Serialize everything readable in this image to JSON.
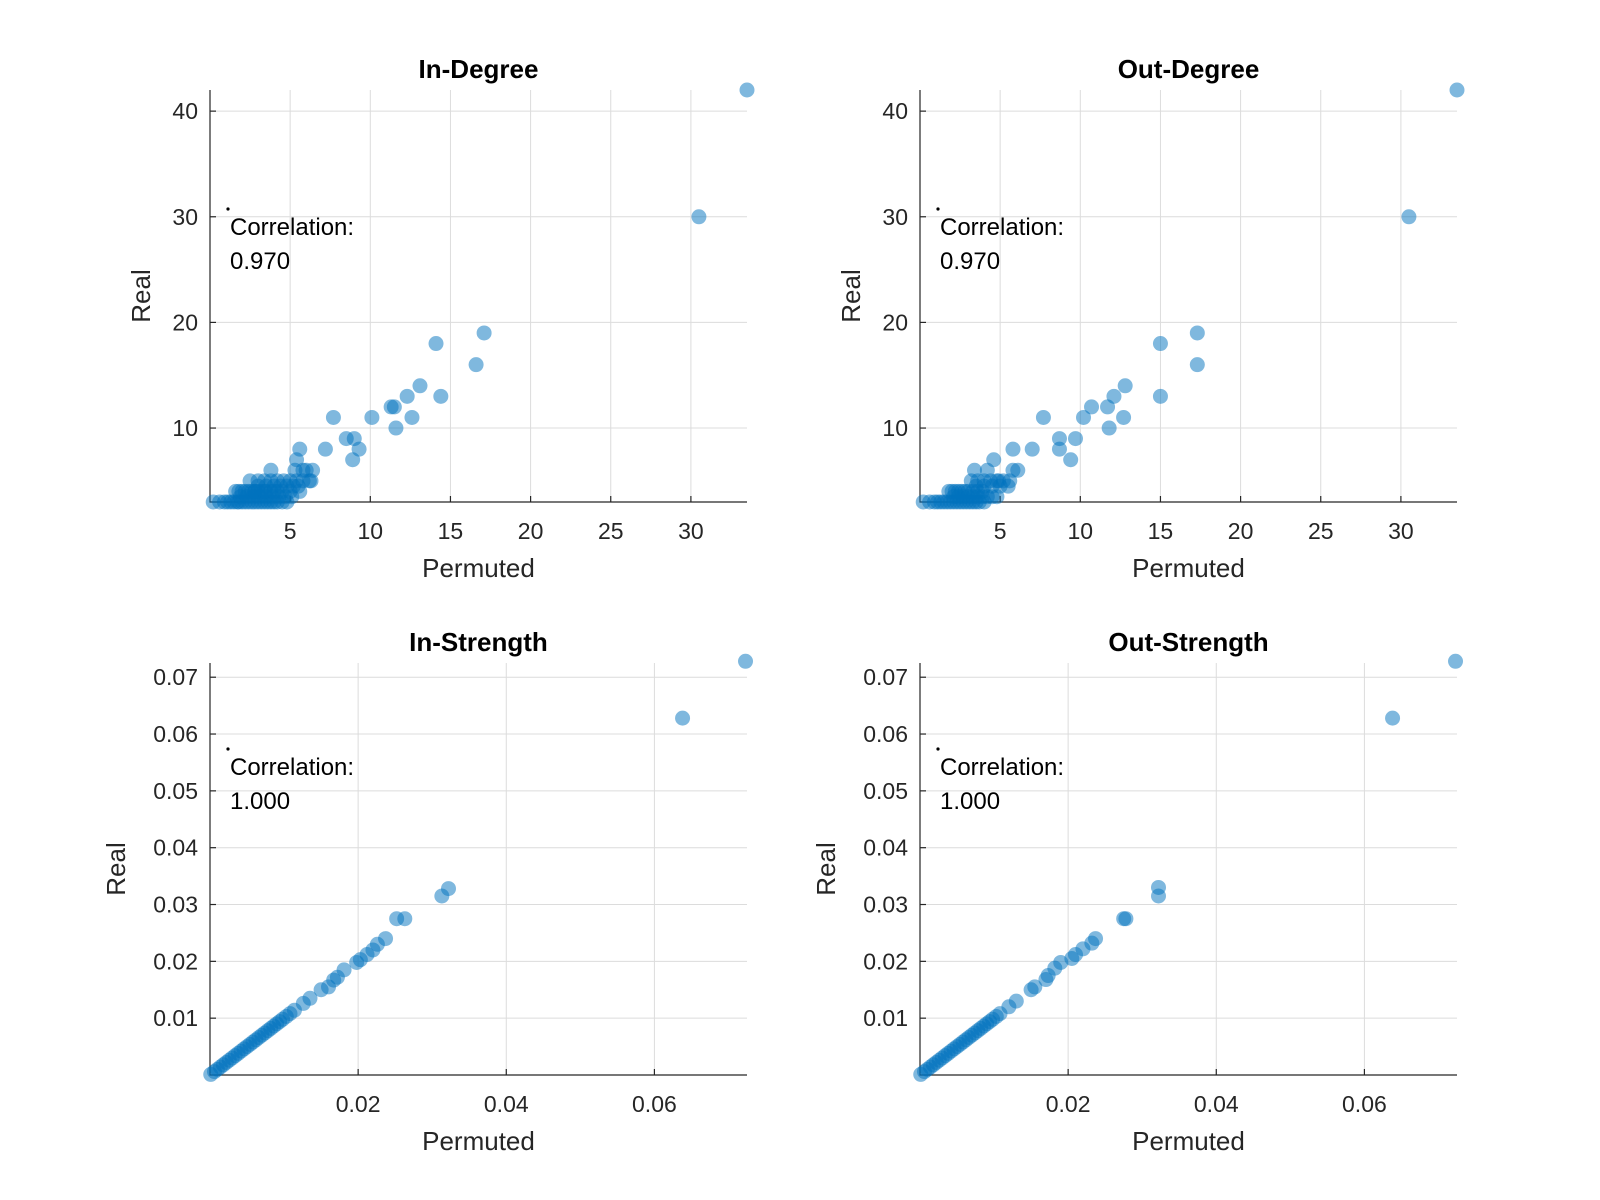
{
  "chart_data": [
    {
      "type": "scatter",
      "title": "In-Degree",
      "xlabel": "Permuted",
      "ylabel": "Real",
      "xlim": [
        0,
        33.5
      ],
      "ylim": [
        3,
        42
      ],
      "xticks": [
        5,
        10,
        15,
        20,
        25,
        30
      ],
      "yticks": [
        10,
        20,
        30,
        40
      ],
      "tick_decimals": 0,
      "grid": true,
      "annotation": [
        "Correlation:",
        "0.970"
      ],
      "x": [
        0.2,
        0.6,
        0.9,
        1.1,
        1.3,
        1.5,
        1.7,
        1.8,
        2.0,
        2.2,
        2.4,
        2.6,
        2.8,
        3.0,
        3.2,
        3.4,
        3.6,
        3.8,
        4.0,
        4.2,
        4.5,
        4.8,
        1.6,
        1.8,
        2.0,
        2.2,
        2.4,
        2.6,
        2.8,
        3.0,
        3.2,
        3.5,
        3.8,
        4.2,
        1.9,
        2.3,
        2.7,
        3.1,
        3.5,
        3.9,
        4.3,
        4.7,
        5.1,
        2.5,
        3.0,
        3.4,
        3.8,
        4.2,
        4.6,
        5.0,
        5.4,
        5.8,
        6.2,
        3.0,
        3.5,
        4.0,
        4.4,
        4.8,
        5.2,
        5.5,
        2.8,
        3.4,
        4.0,
        4.5,
        5.0,
        5.6,
        6.3,
        3.8,
        5.3,
        5.8,
        6.0,
        6.4,
        5.4,
        5.6,
        7.2,
        8.5,
        9.3,
        7.7,
        8.9,
        9.0,
        10.1,
        11.3,
        11.5,
        11.6,
        12.3,
        12.6,
        13.1,
        14.1,
        14.4,
        16.6,
        17.1,
        30.5,
        33.5
      ],
      "y": [
        3,
        3,
        3,
        3,
        3,
        3,
        3,
        3,
        3,
        3,
        3,
        3,
        3,
        3,
        3,
        3,
        3,
        3,
        3,
        3,
        3,
        3,
        4,
        4,
        4,
        4,
        4,
        4,
        4,
        4,
        4,
        4,
        4,
        4,
        3.5,
        3.5,
        3.5,
        3.5,
        3.5,
        3.5,
        3.5,
        3.5,
        3.5,
        5,
        5,
        5,
        5,
        5,
        5,
        5,
        5,
        5,
        5,
        4.5,
        4.5,
        4.5,
        4.5,
        4.5,
        4.5,
        4.5,
        4,
        4,
        4,
        4,
        4,
        4,
        5,
        6,
        6,
        6,
        6,
        6,
        7,
        8,
        8,
        9,
        8,
        11,
        7,
        9,
        11,
        12,
        12,
        10,
        13,
        11,
        14,
        18,
        13,
        16,
        19,
        30,
        42
      ]
    },
    {
      "type": "scatter",
      "title": "Out-Degree",
      "xlabel": "Permuted",
      "ylabel": "Real",
      "xlim": [
        0,
        33.5
      ],
      "ylim": [
        3,
        42
      ],
      "xticks": [
        5,
        10,
        15,
        20,
        25,
        30
      ],
      "yticks": [
        10,
        20,
        30,
        40
      ],
      "tick_decimals": 0,
      "grid": true,
      "annotation": [
        "Correlation:",
        "0.970"
      ],
      "x": [
        0.2,
        0.6,
        0.9,
        1.1,
        1.3,
        1.5,
        1.7,
        1.9,
        2.1,
        2.3,
        2.5,
        2.7,
        2.9,
        3.1,
        3.3,
        3.5,
        3.7,
        4.0,
        1.8,
        2.0,
        2.2,
        2.4,
        2.6,
        2.8,
        3.0,
        3.3,
        3.6,
        3.9,
        2.1,
        2.4,
        2.7,
        3.0,
        3.3,
        3.6,
        3.9,
        4.2,
        4.5,
        4.8,
        3.2,
        3.6,
        4.0,
        4.4,
        4.8,
        5.2,
        3.5,
        4.0,
        4.5,
        5.0,
        5.5,
        3.4,
        4.2,
        4.6,
        4.9,
        5.6,
        5.8,
        6.1,
        5.8,
        7.0,
        7.7,
        8.7,
        8.7,
        9.4,
        9.7,
        10.2,
        10.7,
        11.7,
        11.8,
        12.1,
        12.7,
        12.8,
        15.0,
        15.0,
        17.3,
        17.3,
        30.5,
        33.5
      ],
      "y": [
        3,
        3,
        3,
        3,
        3,
        3,
        3,
        3,
        3,
        3,
        3,
        3,
        3,
        3,
        3,
        3,
        3,
        3,
        4,
        4,
        4,
        4,
        4,
        4,
        4,
        4,
        4,
        4,
        3.5,
        3.5,
        3.5,
        3.5,
        3.5,
        3.5,
        3.5,
        3.5,
        3.5,
        3.5,
        5,
        5,
        5,
        5,
        5,
        5,
        4.5,
        4.5,
        4.5,
        4.5,
        4.5,
        6,
        6,
        7,
        5,
        5,
        6,
        6,
        8,
        8,
        11,
        8,
        9,
        7,
        9,
        11,
        12,
        12,
        10,
        13,
        11,
        14,
        18,
        13,
        19,
        16,
        30,
        42
      ]
    },
    {
      "type": "scatter",
      "title": "In-Strength",
      "xlabel": "Permuted",
      "ylabel": "Real",
      "xlim": [
        0,
        0.0725
      ],
      "ylim": [
        0,
        0.0725
      ],
      "xticks": [
        0.02,
        0.04,
        0.06
      ],
      "yticks": [
        0.01,
        0.02,
        0.03,
        0.04,
        0.05,
        0.06,
        0.07
      ],
      "tick_decimals": 2,
      "grid": true,
      "annotation": [
        "Correlation:",
        "1.000"
      ],
      "x": [
        0.0001,
        0.0006,
        0.001,
        0.0014,
        0.0018,
        0.0022,
        0.0026,
        0.003,
        0.0034,
        0.0038,
        0.0042,
        0.0046,
        0.005,
        0.0054,
        0.0058,
        0.0062,
        0.0066,
        0.007,
        0.0074,
        0.0078,
        0.0082,
        0.0086,
        0.009,
        0.0094,
        0.0098,
        0.0103,
        0.0108,
        0.0114,
        0.0126,
        0.0135,
        0.015,
        0.016,
        0.0167,
        0.0172,
        0.0181,
        0.0198,
        0.0203,
        0.0212,
        0.022,
        0.0226,
        0.0237,
        0.0252,
        0.0263,
        0.0313,
        0.0322,
        0.0638,
        0.0723
      ],
      "y": [
        0.0001,
        0.0006,
        0.001,
        0.0014,
        0.0018,
        0.0022,
        0.0026,
        0.003,
        0.0034,
        0.0038,
        0.0042,
        0.0046,
        0.005,
        0.0054,
        0.0058,
        0.0062,
        0.0066,
        0.007,
        0.0074,
        0.0078,
        0.0082,
        0.0086,
        0.009,
        0.0094,
        0.0098,
        0.0103,
        0.0108,
        0.0114,
        0.0126,
        0.0135,
        0.015,
        0.0155,
        0.0167,
        0.0172,
        0.0185,
        0.0198,
        0.0203,
        0.0212,
        0.022,
        0.023,
        0.024,
        0.0275,
        0.0275,
        0.0315,
        0.0328,
        0.0628,
        0.0728
      ]
    },
    {
      "type": "scatter",
      "title": "Out-Strength",
      "xlabel": "Permuted",
      "ylabel": "Real",
      "xlim": [
        0,
        0.0725
      ],
      "ylim": [
        0,
        0.0725
      ],
      "xticks": [
        0.02,
        0.04,
        0.06
      ],
      "yticks": [
        0.01,
        0.02,
        0.03,
        0.04,
        0.05,
        0.06,
        0.07
      ],
      "tick_decimals": 2,
      "grid": true,
      "annotation": [
        "Correlation:",
        "1.000"
      ],
      "x": [
        0.0001,
        0.0006,
        0.001,
        0.0014,
        0.0018,
        0.0022,
        0.0026,
        0.003,
        0.0034,
        0.0038,
        0.0042,
        0.0046,
        0.005,
        0.0054,
        0.0058,
        0.0062,
        0.0066,
        0.007,
        0.0074,
        0.0078,
        0.0082,
        0.0086,
        0.009,
        0.0094,
        0.0098,
        0.0103,
        0.0108,
        0.012,
        0.013,
        0.015,
        0.0155,
        0.017,
        0.0173,
        0.0182,
        0.019,
        0.0205,
        0.021,
        0.022,
        0.0232,
        0.0237,
        0.0275,
        0.0278,
        0.0322,
        0.0322,
        0.0638,
        0.0723
      ],
      "y": [
        0.0001,
        0.0006,
        0.001,
        0.0014,
        0.0018,
        0.0022,
        0.0026,
        0.003,
        0.0034,
        0.0038,
        0.0042,
        0.0046,
        0.005,
        0.0054,
        0.0058,
        0.0062,
        0.0066,
        0.007,
        0.0074,
        0.0078,
        0.0082,
        0.0086,
        0.009,
        0.0094,
        0.0098,
        0.0103,
        0.0108,
        0.012,
        0.013,
        0.015,
        0.0155,
        0.0168,
        0.0175,
        0.0188,
        0.0198,
        0.0205,
        0.0212,
        0.0222,
        0.0232,
        0.024,
        0.0275,
        0.0275,
        0.0315,
        0.033,
        0.0628,
        0.0728
      ]
    }
  ]
}
